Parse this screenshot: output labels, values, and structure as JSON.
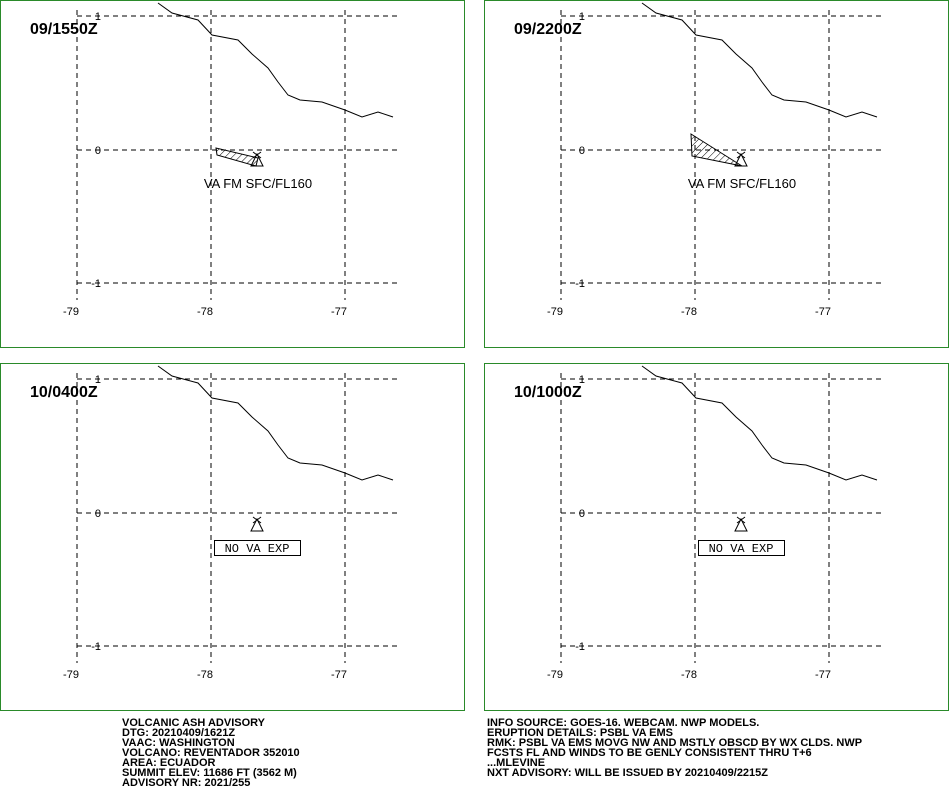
{
  "panels": [
    {
      "time": "09/1550Z",
      "annotation": "VA FM SFC/FL160",
      "lat_labels": [
        "1",
        "0",
        "-1"
      ],
      "lon_labels": [
        "-79",
        "-78",
        "-77"
      ]
    },
    {
      "time": "09/2200Z",
      "annotation": "VA FM SFC/FL160",
      "lat_labels": [
        "1",
        "0",
        "-1"
      ],
      "lon_labels": [
        "-79",
        "-78",
        "-77"
      ]
    },
    {
      "time": "10/0400Z",
      "annotation": "NO VA EXP",
      "lat_labels": [
        "1",
        "0",
        "-1"
      ],
      "lon_labels": [
        "-79",
        "-78",
        "-77"
      ]
    },
    {
      "time": "10/1000Z",
      "annotation": "NO VA EXP",
      "lat_labels": [
        "1",
        "0",
        "-1"
      ],
      "lon_labels": [
        "-79",
        "-78",
        "-77"
      ]
    }
  ],
  "advisory_left": [
    "VOLCANIC ASH ADVISORY",
    "DTG: 20210409/1621Z",
    "VAAC: WASHINGTON",
    "VOLCANO: REVENTADOR 352010",
    "AREA: ECUADOR",
    "SUMMIT ELEV: 11686 FT (3562 M)",
    "ADVISORY NR: 2021/255"
  ],
  "advisory_right": [
    "INFO SOURCE: GOES-16. WEBCAM. NWP MODELS.",
    "ERUPTION DETAILS: PSBL VA EMS",
    "RMK: PSBL VA EMS MOVG NW AND MSTLY OBSCD BY WX CLDS. NWP",
    "FCSTS FL AND WINDS TO BE GENLY CONSISTENT THRU T+6",
    "...MLEVINE",
    "NXT ADVISORY: WILL BE ISSUED BY 20210409/2215Z"
  ]
}
